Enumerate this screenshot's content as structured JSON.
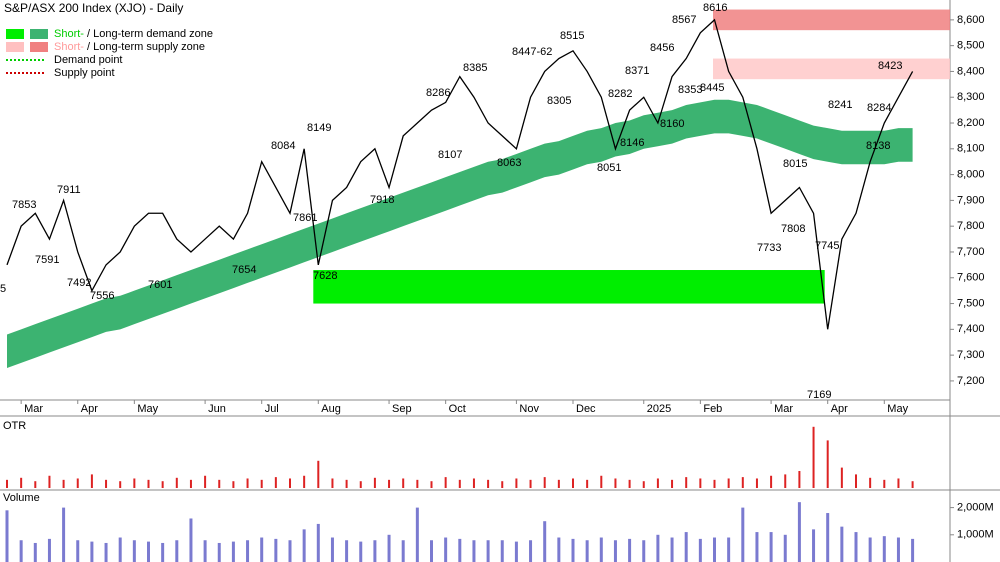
{
  "chart_data": {
    "type": "line",
    "title": "S&P/ASX 200 Index (XJO) - Daily",
    "color": "#000000",
    "categories": [
      null,
      "Mar",
      null,
      null,
      null,
      "Apr",
      null,
      null,
      null,
      "May",
      null,
      null,
      null,
      null,
      "Jun",
      null,
      null,
      null,
      "Jul",
      null,
      null,
      null,
      "Aug",
      null,
      null,
      null,
      null,
      "Sep",
      null,
      null,
      null,
      "Oct",
      null,
      null,
      null,
      null,
      "Nov",
      null,
      null,
      null,
      "Dec",
      null,
      null,
      null,
      null,
      "2025",
      null,
      null,
      null,
      "Feb",
      null,
      null,
      null,
      null,
      "Mar",
      null,
      null,
      null,
      "Apr",
      null,
      null,
      null,
      "May",
      null,
      null
    ],
    "values": [
      7650,
      7800,
      7850,
      7750,
      7900,
      7700,
      7550,
      7650,
      7700,
      7800,
      7850,
      7850,
      7750,
      7700,
      7750,
      7800,
      7750,
      7850,
      8050,
      7950,
      7850,
      8100,
      7650,
      7900,
      7950,
      8050,
      8100,
      7950,
      8150,
      8200,
      8250,
      8280,
      8380,
      8300,
      8200,
      8150,
      8100,
      8300,
      8400,
      8450,
      8480,
      8400,
      8300,
      8100,
      8250,
      8300,
      8200,
      8380,
      8450,
      8550,
      8600,
      8400,
      8300,
      8100,
      7850,
      7900,
      7950,
      7850,
      7400,
      7750,
      7850,
      8050,
      8200,
      8300,
      8400
    ],
    "ylim": [
      7126,
      8677
    ],
    "yticks": [
      {
        "value": 7200,
        "label": "7,200"
      },
      {
        "value": 7300,
        "label": "7,300"
      },
      {
        "value": 7400,
        "label": "7,400"
      },
      {
        "value": 7500,
        "label": "7,500"
      },
      {
        "value": 7600,
        "label": "7,600"
      },
      {
        "value": 7700,
        "label": "7,700"
      },
      {
        "value": 7800,
        "label": "7,800"
      },
      {
        "value": 7900,
        "label": "7,900"
      },
      {
        "value": 8000,
        "label": "8,000"
      },
      {
        "value": 8100,
        "label": "8,100"
      },
      {
        "value": 8200,
        "label": "8,200"
      },
      {
        "value": 8300,
        "label": "8,300"
      },
      {
        "value": 8400,
        "label": "8,400"
      },
      {
        "value": 8500,
        "label": "8,500"
      },
      {
        "value": 8600,
        "label": "8,600"
      }
    ],
    "demand_band": {
      "color": "#3cb371",
      "lower": [
        7250,
        7270,
        7290,
        7310,
        7330,
        7350,
        7370,
        7390,
        7400,
        7420,
        7440,
        7460,
        7480,
        7500,
        7520,
        7540,
        7560,
        7580,
        7600,
        7620,
        7640,
        7660,
        7680,
        7700,
        7720,
        7740,
        7760,
        7780,
        7800,
        7820,
        7840,
        7860,
        7880,
        7900,
        7920,
        7930,
        7950,
        7970,
        7990,
        8000,
        8020,
        8040,
        8050,
        8070,
        8080,
        8100,
        8110,
        8120,
        8140,
        8150,
        8160,
        8160,
        8150,
        8140,
        8120,
        8100,
        8080,
        8060,
        8050,
        8040,
        8040,
        8040,
        8040,
        8050,
        8050
      ],
      "upper": [
        7380,
        7400,
        7420,
        7440,
        7460,
        7480,
        7500,
        7520,
        7530,
        7550,
        7570,
        7590,
        7610,
        7630,
        7650,
        7670,
        7690,
        7710,
        7730,
        7750,
        7770,
        7790,
        7810,
        7830,
        7850,
        7870,
        7890,
        7910,
        7930,
        7950,
        7970,
        7990,
        8010,
        8030,
        8050,
        8060,
        8080,
        8100,
        8120,
        8130,
        8150,
        8170,
        8180,
        8200,
        8210,
        8230,
        8240,
        8250,
        8270,
        8280,
        8290,
        8290,
        8280,
        8270,
        8250,
        8230,
        8210,
        8190,
        8180,
        8170,
        8170,
        8170,
        8170,
        8180,
        8180
      ]
    },
    "zones": [
      {
        "color": "#00ee00",
        "ylim": [
          7500,
          7630
        ]
      },
      {
        "color": "#f08080",
        "ylim": [
          8560,
          8640
        ]
      },
      {
        "color": "#ffc8c8",
        "ylim": [
          8370,
          8450
        ]
      }
    ],
    "legend": [
      {
        "colors": [
          "#00ee00",
          "#3cb371"
        ],
        "parts": [
          "Short-",
          " / Long-term demand zone"
        ],
        "part_colors": [
          "#00cc00",
          "#000000"
        ]
      },
      {
        "colors": [
          "#ffc0c0",
          "#f08080"
        ],
        "parts": [
          "Short-",
          " / Long-term supply zone"
        ],
        "part_colors": [
          "#ff9a9a",
          "#000000"
        ]
      },
      {
        "colors": [
          "#00cc00"
        ],
        "parts": [
          "Demand point"
        ],
        "part_colors": [
          "#000000"
        ],
        "dotted": true
      },
      {
        "colors": [
          "#cc0000"
        ],
        "parts": [
          "Supply point"
        ],
        "part_colors": [
          "#000000"
        ],
        "dotted": true
      }
    ],
    "annotations": [
      "5",
      "7853",
      "7911",
      "7591",
      "7492",
      "7556",
      "7601",
      "7654",
      "8084",
      "8149",
      "7861",
      "7628",
      "7918",
      "8286",
      "8385",
      "8107",
      "8063",
      "8447-62",
      "8515",
      "8305",
      "8282",
      "8146",
      "8051",
      "8371",
      "8160",
      "8456",
      "8567",
      "8353",
      "8445",
      "8616",
      "8015",
      "7733",
      "7808",
      "7169",
      "7745",
      "8241",
      "8423",
      "8284",
      "8138"
    ],
    "otr": {
      "title": "OTR",
      "color": "#dd2222",
      "ylim": [
        0,
        100
      ],
      "values": [
        12,
        15,
        10,
        18,
        12,
        14,
        20,
        12,
        10,
        14,
        12,
        10,
        15,
        12,
        18,
        12,
        10,
        14,
        12,
        16,
        14,
        18,
        40,
        14,
        12,
        10,
        15,
        12,
        14,
        12,
        10,
        16,
        12,
        14,
        12,
        10,
        14,
        12,
        16,
        12,
        14,
        12,
        18,
        14,
        12,
        10,
        14,
        12,
        16,
        14,
        12,
        14,
        16,
        14,
        18,
        20,
        25,
        90,
        70,
        30,
        20,
        15,
        12,
        14,
        10
      ]
    },
    "volume": {
      "title": "Volume",
      "color": "#7a7ad0",
      "ylim": [
        0,
        2500
      ],
      "yticks": [
        {
          "value": 1000,
          "label": "1,000M"
        },
        {
          "value": 2000,
          "label": "2,000M"
        }
      ],
      "values": [
        1900,
        800,
        700,
        850,
        2000,
        800,
        750,
        700,
        900,
        800,
        750,
        700,
        800,
        1600,
        800,
        700,
        750,
        800,
        900,
        850,
        800,
        1200,
        1400,
        900,
        800,
        750,
        800,
        1000,
        800,
        2000,
        800,
        900,
        850,
        800,
        800,
        800,
        750,
        800,
        1500,
        900,
        850,
        800,
        900,
        800,
        850,
        800,
        1000,
        900,
        1100,
        850,
        900,
        900,
        2000,
        1100,
        1100,
        1000,
        2200,
        1200,
        1800,
        1300,
        1100,
        900,
        950,
        900,
        850
      ]
    }
  }
}
